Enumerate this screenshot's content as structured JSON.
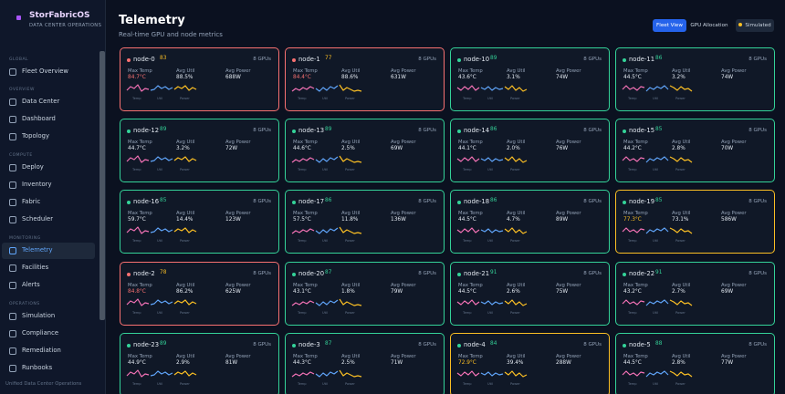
{
  "brand": {
    "title": "StorFabricOS",
    "subtitle": "Data Center Operations"
  },
  "sidebar": {
    "sections": [
      {
        "label": "Global",
        "items": [
          {
            "label": "Fleet Overview",
            "icon": "globe-icon"
          }
        ]
      },
      {
        "label": "Overview",
        "items": [
          {
            "label": "Data Center",
            "icon": "server-icon"
          },
          {
            "label": "Dashboard",
            "icon": "dashboard-icon"
          },
          {
            "label": "Topology",
            "icon": "topology-icon"
          }
        ]
      },
      {
        "label": "Compute",
        "items": [
          {
            "label": "Deploy",
            "icon": "rocket-icon"
          },
          {
            "label": "Inventory",
            "icon": "box-icon"
          },
          {
            "label": "Fabric",
            "icon": "fabric-icon"
          },
          {
            "label": "Scheduler",
            "icon": "calendar-icon"
          }
        ]
      },
      {
        "label": "Monitoring",
        "items": [
          {
            "label": "Telemetry",
            "icon": "pulse-icon",
            "active": true
          },
          {
            "label": "Facilities",
            "icon": "building-icon"
          },
          {
            "label": "Alerts",
            "icon": "bell-icon"
          }
        ]
      },
      {
        "label": "Operations",
        "items": [
          {
            "label": "Simulation",
            "icon": "flask-icon"
          },
          {
            "label": "Compliance",
            "icon": "shield-icon"
          },
          {
            "label": "Remediation",
            "icon": "wrench-icon"
          },
          {
            "label": "Runbooks",
            "icon": "book-icon"
          }
        ]
      }
    ],
    "footer": "Unified Data Center Operations"
  },
  "header": {
    "title": "Telemetry",
    "subtitle": "Real-time GPU and node metrics",
    "buttons": {
      "fleet_view": "Fleet View",
      "gpu_allocation": "GPU Allocation",
      "simulated": "Simulated"
    }
  },
  "colors": {
    "accent": "#2563eb",
    "healthy": "#34d399",
    "critical": "#f87171",
    "warning": "#fbbf24",
    "temp_line": "#f472b6",
    "util_line": "#60a5fa",
    "power_line": "#fbbf24"
  },
  "card_labels": {
    "max_temp": "Max Temp",
    "avg_util": "Avg Util",
    "avg_power": "Avg Power",
    "spark_temp": "Temp",
    "spark_util": "Util",
    "spark_power": "Power"
  },
  "nodes": [
    {
      "name": "node-0",
      "score": "83",
      "gpus": "8 GPUs",
      "temp": "84.7°C",
      "util": "88.5%",
      "power": "688W",
      "status": "critical",
      "temp_state": "hot"
    },
    {
      "name": "node-1",
      "score": "77",
      "gpus": "8 GPUs",
      "temp": "84.4°C",
      "util": "88.6%",
      "power": "631W",
      "status": "critical",
      "temp_state": "hot"
    },
    {
      "name": "node-10",
      "score": "89",
      "gpus": "8 GPUs",
      "temp": "43.6°C",
      "util": "3.1%",
      "power": "74W",
      "status": "healthy",
      "temp_state": "normal"
    },
    {
      "name": "node-11",
      "score": "86",
      "gpus": "8 GPUs",
      "temp": "44.5°C",
      "util": "3.2%",
      "power": "74W",
      "status": "healthy",
      "temp_state": "normal"
    },
    {
      "name": "node-12",
      "score": "89",
      "gpus": "8 GPUs",
      "temp": "44.7°C",
      "util": "3.2%",
      "power": "72W",
      "status": "healthy",
      "temp_state": "normal"
    },
    {
      "name": "node-13",
      "score": "89",
      "gpus": "8 GPUs",
      "temp": "44.6°C",
      "util": "2.5%",
      "power": "69W",
      "status": "healthy",
      "temp_state": "normal"
    },
    {
      "name": "node-14",
      "score": "86",
      "gpus": "8 GPUs",
      "temp": "44.1°C",
      "util": "2.0%",
      "power": "76W",
      "status": "healthy",
      "temp_state": "normal"
    },
    {
      "name": "node-15",
      "score": "85",
      "gpus": "8 GPUs",
      "temp": "44.2°C",
      "util": "2.8%",
      "power": "70W",
      "status": "healthy",
      "temp_state": "normal"
    },
    {
      "name": "node-16",
      "score": "85",
      "gpus": "8 GPUs",
      "temp": "59.7°C",
      "util": "14.4%",
      "power": "123W",
      "status": "healthy",
      "temp_state": "normal"
    },
    {
      "name": "node-17",
      "score": "86",
      "gpus": "8 GPUs",
      "temp": "57.5°C",
      "util": "11.8%",
      "power": "136W",
      "status": "healthy",
      "temp_state": "normal"
    },
    {
      "name": "node-18",
      "score": "86",
      "gpus": "8 GPUs",
      "temp": "44.5°C",
      "util": "4.7%",
      "power": "89W",
      "status": "healthy",
      "temp_state": "normal"
    },
    {
      "name": "node-19",
      "score": "85",
      "gpus": "8 GPUs",
      "temp": "77.3°C",
      "util": "73.1%",
      "power": "586W",
      "status": "warn",
      "temp_state": "warm"
    },
    {
      "name": "node-2",
      "score": "78",
      "gpus": "8 GPUs",
      "temp": "84.8°C",
      "util": "86.2%",
      "power": "625W",
      "status": "critical",
      "temp_state": "hot"
    },
    {
      "name": "node-20",
      "score": "87",
      "gpus": "8 GPUs",
      "temp": "43.1°C",
      "util": "1.8%",
      "power": "79W",
      "status": "healthy",
      "temp_state": "normal"
    },
    {
      "name": "node-21",
      "score": "91",
      "gpus": "8 GPUs",
      "temp": "44.5°C",
      "util": "2.6%",
      "power": "75W",
      "status": "healthy",
      "temp_state": "normal"
    },
    {
      "name": "node-22",
      "score": "91",
      "gpus": "8 GPUs",
      "temp": "43.2°C",
      "util": "2.7%",
      "power": "69W",
      "status": "healthy",
      "temp_state": "normal"
    },
    {
      "name": "node-23",
      "score": "89",
      "gpus": "8 GPUs",
      "temp": "44.9°C",
      "util": "2.9%",
      "power": "81W",
      "status": "healthy",
      "temp_state": "normal"
    },
    {
      "name": "node-3",
      "score": "87",
      "gpus": "8 GPUs",
      "temp": "44.3°C",
      "util": "2.5%",
      "power": "71W",
      "status": "healthy",
      "temp_state": "normal"
    },
    {
      "name": "node-4",
      "score": "84",
      "gpus": "8 GPUs",
      "temp": "72.9°C",
      "util": "39.4%",
      "power": "288W",
      "status": "warn",
      "temp_state": "warm"
    },
    {
      "name": "node-5",
      "score": "88",
      "gpus": "8 GPUs",
      "temp": "44.5°C",
      "util": "2.8%",
      "power": "77W",
      "status": "healthy",
      "temp_state": "normal"
    }
  ]
}
